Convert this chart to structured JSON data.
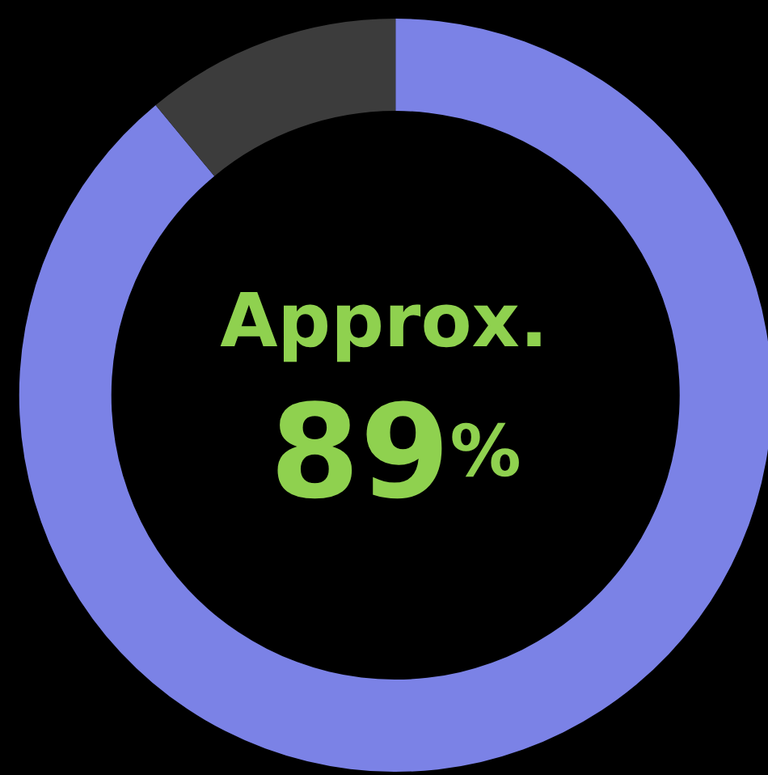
{
  "chart_data": {
    "type": "donut",
    "categories": [
      null,
      null
    ],
    "values": [
      89,
      11
    ],
    "colors": [
      "#7b82e6",
      "#3c3c3c"
    ],
    "value_labels": [
      "89%",
      null
    ],
    "annotations": [
      "Approx."
    ]
  }
}
